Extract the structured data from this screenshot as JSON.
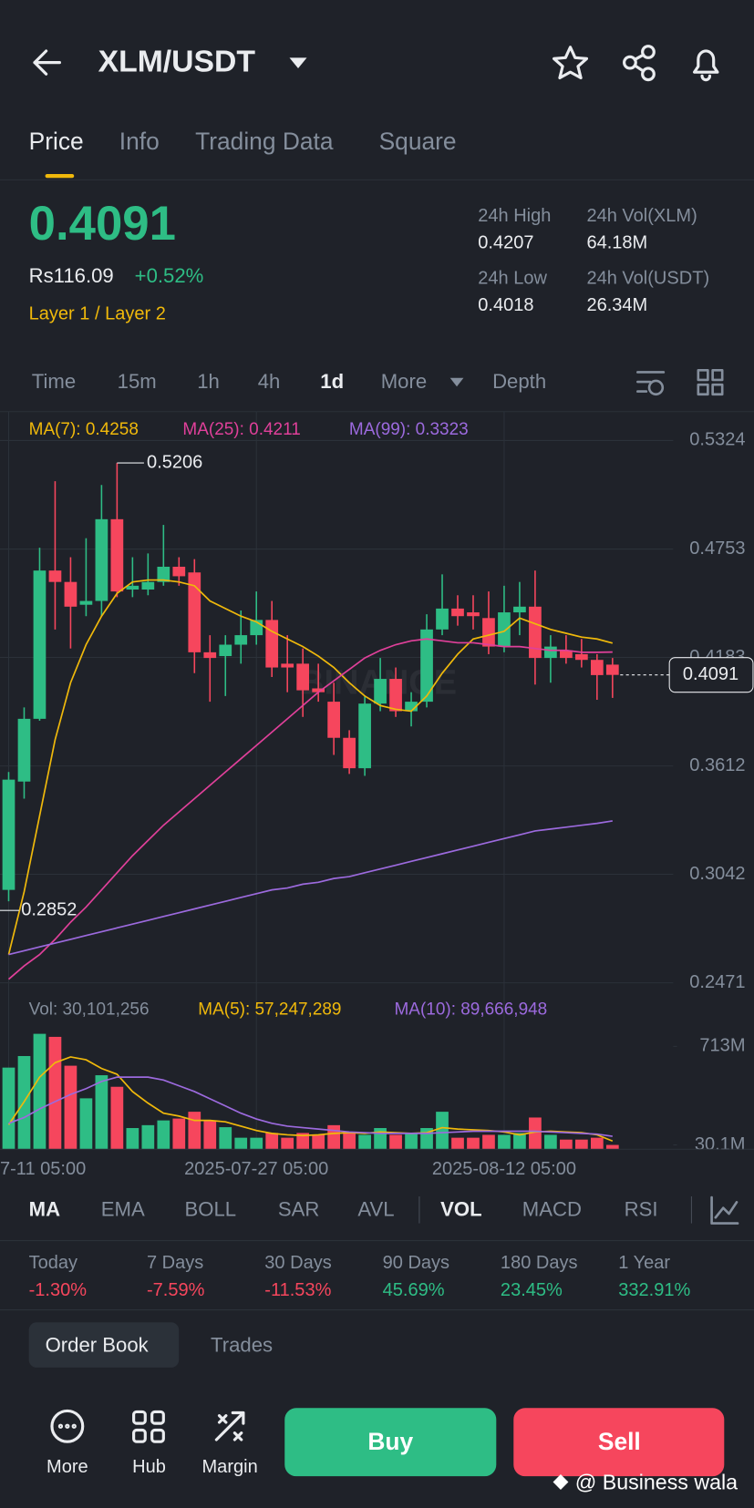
{
  "header": {
    "title": "XLM/USDT"
  },
  "tabs": [
    "Price",
    "Info",
    "Trading Data",
    "Square"
  ],
  "price": {
    "last": "0.4091",
    "fiat": "Rs116.09",
    "change": "+0.52%",
    "tag": "Layer 1 / Layer 2"
  },
  "stats": [
    {
      "label": "24h High",
      "value": "0.4207"
    },
    {
      "label": "24h Vol(XLM)",
      "value": "64.18M"
    },
    {
      "label": "24h Low",
      "value": "0.4018"
    },
    {
      "label": "24h Vol(USDT)",
      "value": "26.34M"
    }
  ],
  "intervals": [
    "Time",
    "15m",
    "1h",
    "4h",
    "1d",
    "More",
    "Depth"
  ],
  "watermark": "BINANCE",
  "chart_data": [
    {
      "type": "candlestick",
      "categories": [
        "7-11 05:00",
        null,
        null,
        null,
        null,
        null,
        null,
        null,
        null,
        null,
        null,
        null,
        null,
        null,
        null,
        null,
        "2025-07-27 05:00",
        null,
        null,
        null,
        null,
        null,
        null,
        null,
        null,
        null,
        null,
        null,
        null,
        null,
        null,
        null,
        "2025-08-12 05:00",
        null,
        null,
        null,
        null,
        null,
        null,
        null
      ],
      "open": [
        0.296,
        0.353,
        0.386,
        0.464,
        0.458,
        0.446,
        0.448,
        0.491,
        0.454,
        0.454,
        0.458,
        0.466,
        0.463,
        0.421,
        0.419,
        0.425,
        0.43,
        0.438,
        0.415,
        0.415,
        0.402,
        0.395,
        0.376,
        0.36,
        0.394,
        0.407,
        0.39,
        0.395,
        0.433,
        0.444,
        0.442,
        0.439,
        0.424,
        0.442,
        0.445,
        0.418,
        0.422,
        0.42,
        0.417,
        0.4145
      ],
      "high": [
        0.358,
        0.392,
        0.476,
        0.511,
        0.471,
        0.481,
        0.509,
        0.5206,
        0.471,
        0.473,
        0.488,
        0.471,
        0.47,
        0.43,
        0.43,
        0.443,
        0.453,
        0.448,
        0.43,
        0.423,
        0.415,
        0.405,
        0.38,
        0.398,
        0.418,
        0.413,
        0.4,
        0.441,
        0.462,
        0.451,
        0.451,
        0.453,
        0.456,
        0.458,
        0.464,
        0.43,
        0.43,
        0.428,
        0.42,
        0.418
      ],
      "low": [
        0.29,
        0.344,
        0.385,
        0.433,
        0.423,
        0.44,
        0.44,
        0.45,
        0.45,
        0.451,
        0.456,
        0.456,
        0.41,
        0.395,
        0.398,
        0.415,
        0.425,
        0.408,
        0.4,
        0.387,
        0.395,
        0.367,
        0.357,
        0.356,
        0.39,
        0.387,
        0.382,
        0.392,
        0.43,
        0.435,
        0.433,
        0.42,
        0.421,
        0.43,
        0.404,
        0.405,
        0.415,
        0.413,
        0.396,
        0.397
      ],
      "close": [
        0.354,
        0.386,
        0.464,
        0.458,
        0.445,
        0.448,
        0.491,
        0.453,
        0.456,
        0.458,
        0.466,
        0.461,
        0.421,
        0.418,
        0.425,
        0.43,
        0.438,
        0.413,
        0.413,
        0.401,
        0.4,
        0.376,
        0.36,
        0.394,
        0.407,
        0.39,
        0.395,
        0.433,
        0.444,
        0.44,
        0.44,
        0.424,
        0.442,
        0.445,
        0.418,
        0.424,
        0.418,
        0.417,
        0.409,
        0.4091
      ],
      "up_color": "#2ebd85",
      "down_color": "#f6465d",
      "series": [
        {
          "name": "MA(7): 0.4258",
          "color": "#f0b90b",
          "values": [
            0.262,
            0.295,
            0.335,
            0.375,
            0.405,
            0.425,
            0.44,
            0.452,
            0.458,
            0.459,
            0.459,
            0.458,
            0.456,
            0.448,
            0.444,
            0.44,
            0.437,
            0.432,
            0.428,
            0.424,
            0.419,
            0.413,
            0.405,
            0.398,
            0.393,
            0.391,
            0.39,
            0.398,
            0.41,
            0.42,
            0.428,
            0.43,
            0.432,
            0.439,
            0.436,
            0.433,
            0.431,
            0.429,
            0.428,
            0.4258
          ]
        },
        {
          "name": "MA(25): 0.4211",
          "color": "#e0409a",
          "values": [
            0.249,
            0.256,
            0.262,
            0.27,
            0.279,
            0.287,
            0.296,
            0.305,
            0.314,
            0.322,
            0.33,
            0.337,
            0.344,
            0.351,
            0.358,
            0.365,
            0.372,
            0.379,
            0.386,
            0.393,
            0.4,
            0.406,
            0.412,
            0.418,
            0.422,
            0.425,
            0.427,
            0.428,
            0.427,
            0.426,
            0.426,
            0.425,
            0.424,
            0.424,
            0.423,
            0.422,
            0.422,
            0.421,
            0.421,
            0.4211
          ]
        },
        {
          "name": "MA(99): 0.3323",
          "color": "#9c6ade",
          "values": [
            0.262,
            0.264,
            0.266,
            0.268,
            0.27,
            0.272,
            0.274,
            0.276,
            0.278,
            0.28,
            0.282,
            0.284,
            0.286,
            0.288,
            0.29,
            0.292,
            0.294,
            0.296,
            0.297,
            0.299,
            0.3,
            0.302,
            0.303,
            0.305,
            0.307,
            0.309,
            0.311,
            0.313,
            0.315,
            0.317,
            0.319,
            0.321,
            0.323,
            0.325,
            0.327,
            0.328,
            0.329,
            0.33,
            0.331,
            0.3323
          ]
        }
      ],
      "ylim": [
        0.2405,
        0.5476
      ],
      "yticks": [
        0.5324,
        0.4753,
        0.4183,
        0.3612,
        0.3042,
        0.2471
      ],
      "max_label": 0.5206,
      "min_label": 0.2852,
      "last_price": 0.4091,
      "grid": true
    },
    {
      "type": "bar",
      "title": "Vol: 30,101,256",
      "values": [
        566,
        646,
        800,
        779,
        579,
        353,
        513,
        433,
        147,
        167,
        200,
        213,
        260,
        200,
        153,
        80,
        80,
        113,
        80,
        113,
        100,
        167,
        113,
        100,
        147,
        100,
        113,
        147,
        260,
        80,
        80,
        100,
        100,
        113,
        220,
        100,
        67,
        67,
        80,
        30.1
      ],
      "series": [
        {
          "name": "MA(5): 57,247,289",
          "color": "#f0b90b",
          "values": [
            170,
            330,
            500,
            600,
            640,
            620,
            560,
            520,
            400,
            320,
            250,
            230,
            200,
            200,
            190,
            160,
            130,
            110,
            100,
            95,
            100,
            110,
            115,
            110,
            120,
            115,
            110,
            115,
            150,
            140,
            135,
            130,
            120,
            100,
            120,
            125,
            120,
            115,
            100,
            57.2
          ]
        },
        {
          "name": "MA(10): 89,666,948",
          "color": "#9c6ade",
          "values": [
            180,
            220,
            280,
            330,
            380,
            420,
            470,
            500,
            500,
            500,
            480,
            440,
            400,
            350,
            300,
            250,
            210,
            180,
            160,
            150,
            140,
            130,
            120,
            115,
            110,
            110,
            110,
            110,
            115,
            120,
            125,
            125,
            125,
            125,
            125,
            120,
            115,
            110,
            105,
            89.7
          ]
        }
      ],
      "ylim": [
        0,
        833
      ],
      "yticks": [
        {
          "value": 713,
          "label": "713M"
        },
        {
          "value": 30.1,
          "label": "30.1M"
        }
      ]
    }
  ],
  "indicators": [
    "MA",
    "EMA",
    "BOLL",
    "SAR",
    "AVL",
    "VOL",
    "MACD",
    "RSI"
  ],
  "performance": [
    {
      "label": "Today",
      "value": "-1.30%"
    },
    {
      "label": "7 Days",
      "value": "-7.59%"
    },
    {
      "label": "30 Days",
      "value": "-11.53%"
    },
    {
      "label": "90 Days",
      "value": "45.69%"
    },
    {
      "label": "180 Days",
      "value": "23.45%"
    },
    {
      "label": "1 Year",
      "value": "332.91%"
    }
  ],
  "book_tabs": [
    "Order Book",
    "Trades"
  ],
  "nav": [
    "More",
    "Hub",
    "Margin"
  ],
  "actions": [
    "Buy",
    "Sell"
  ],
  "credit": "@ Business wala"
}
